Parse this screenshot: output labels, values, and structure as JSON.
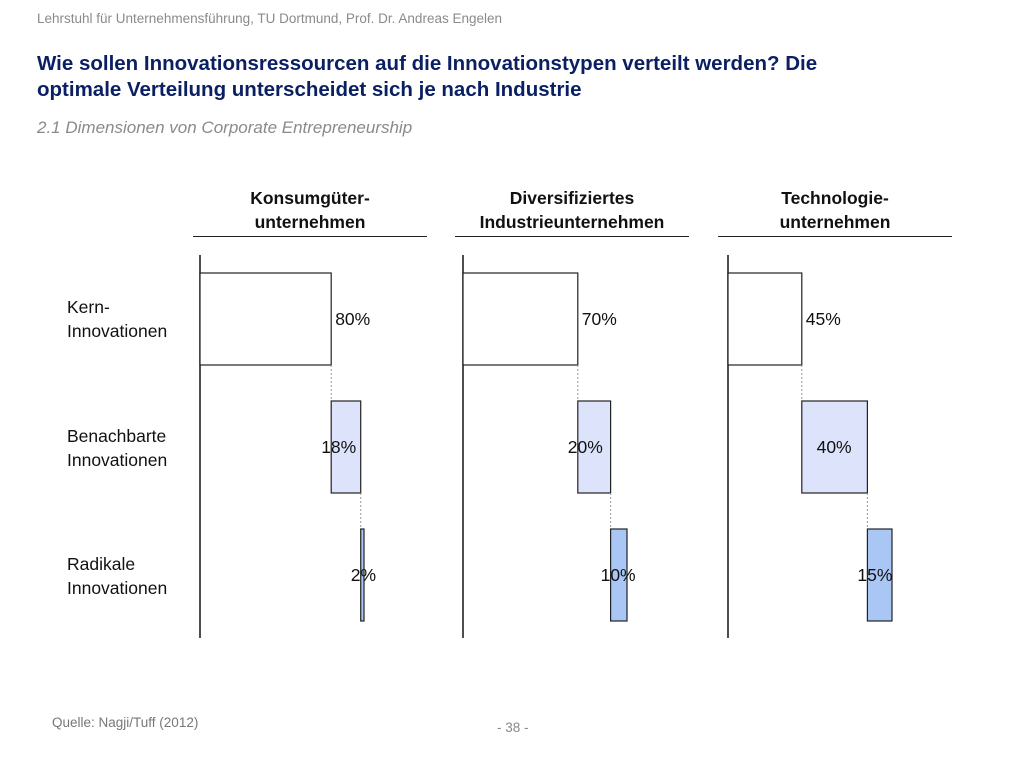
{
  "header": {
    "org": "Lehrstuhl für Unternehmensführung, TU Dortmund,  Prof. Dr. Andreas Engelen"
  },
  "title_line1": "Wie sollen Innovationsressourcen auf die Innovationstypen verteilt werden? Die",
  "title_line2": "optimale Verteilung unterscheidet sich je nach Industrie",
  "subtitle": "2.1 Dimensionen von Corporate Entrepreneurship",
  "row_labels": [
    {
      "line1": "Kern-",
      "line2": "Innovationen"
    },
    {
      "line1": "Benachbarte",
      "line2": "Innovationen"
    },
    {
      "line1": "Radikale",
      "line2": "Innovationen"
    }
  ],
  "panels": [
    {
      "line1": "Konsumgüter-",
      "line2": "unternehmen"
    },
    {
      "line1": "Diversifiziertes",
      "line2": "Industrieunternehmen"
    },
    {
      "line1": "Technologie-",
      "line2": "unternehmen"
    }
  ],
  "colors": {
    "kern": "#ffffff",
    "benachbart": "#dce3fb",
    "radikal": "#a9c6f5",
    "stroke": "#222222",
    "connector": "#999999"
  },
  "chart_data": [
    {
      "type": "bar",
      "title": "Konsumgüter- unternehmen",
      "categories": [
        "Kern- Innovationen",
        "Benachbarte Innovationen",
        "Radikale Innovationen"
      ],
      "values": [
        80,
        18,
        2
      ],
      "value_labels": [
        "80%",
        "18%",
        "2%"
      ]
    },
    {
      "type": "bar",
      "title": "Diversifiziertes Industrieunternehmen",
      "categories": [
        "Kern- Innovationen",
        "Benachbarte Innovationen",
        "Radikale Innovationen"
      ],
      "values": [
        70,
        20,
        10
      ],
      "value_labels": [
        "70%",
        "20%",
        "10%"
      ]
    },
    {
      "type": "bar",
      "title": "Technologie- unternehmen",
      "categories": [
        "Kern- Innovationen",
        "Benachbarte Innovationen",
        "Radikale Innovationen"
      ],
      "values": [
        45,
        40,
        15
      ],
      "value_labels": [
        "45%",
        "40%",
        "15%"
      ]
    }
  ],
  "footer": {
    "source": "Quelle: Nagji/Tuff (2012)",
    "page": "- 38 -"
  }
}
